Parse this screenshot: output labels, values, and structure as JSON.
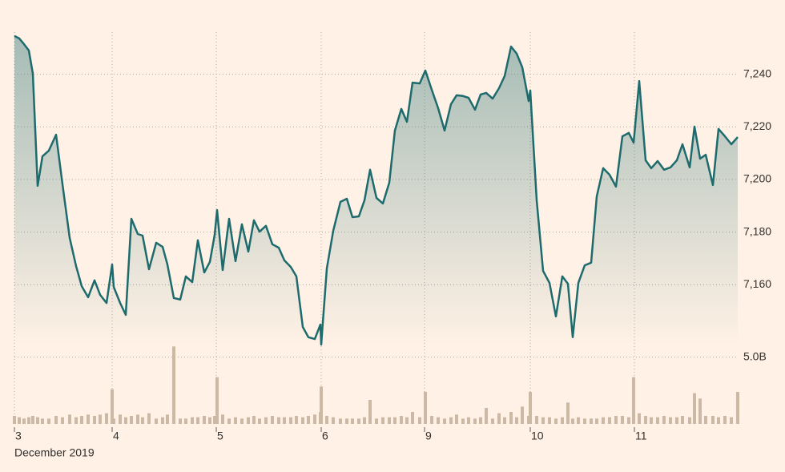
{
  "chart_data": {
    "type": "line",
    "x_label": "December 2019",
    "xlim": [
      0,
      903
    ],
    "xticks": [
      {
        "value": 0,
        "label": "3"
      },
      {
        "value": 122,
        "label": "4"
      },
      {
        "value": 252,
        "label": "5"
      },
      {
        "value": 383,
        "label": "6"
      },
      {
        "value": 512,
        "label": "9"
      },
      {
        "value": 644,
        "label": "10"
      },
      {
        "value": 774,
        "label": "11"
      }
    ],
    "x": [
      0,
      6,
      12,
      18,
      23,
      29,
      35,
      43,
      52,
      60,
      69,
      77,
      84,
      92,
      100,
      107,
      115,
      122,
      124,
      132,
      139,
      146,
      154,
      160,
      168,
      177,
      185,
      191,
      199,
      207,
      214,
      222,
      229,
      237,
      244,
      250,
      253,
      260,
      268,
      276,
      284,
      292,
      299,
      306,
      314,
      322,
      330,
      337,
      345,
      352,
      360,
      367,
      375,
      382,
      383,
      390,
      398,
      407,
      415,
      422,
      430,
      437,
      444,
      452,
      460,
      468,
      475,
      483,
      490,
      497,
      506,
      513,
      521,
      529,
      537,
      545,
      552,
      560,
      567,
      575,
      582,
      589,
      597,
      605,
      612,
      620,
      627,
      634,
      642,
      644,
      652,
      660,
      668,
      676,
      684,
      691,
      697,
      704,
      712,
      720,
      727,
      735,
      743,
      751,
      759,
      767,
      773,
      780,
      788,
      795,
      803,
      811,
      819,
      827,
      834,
      843,
      849,
      856,
      863,
      872,
      879,
      887,
      895,
      903
    ],
    "ylim": [
      7137,
      7256
    ],
    "yticks": [
      {
        "value": 7160,
        "label": "7,160"
      },
      {
        "value": 7180,
        "label": "7,180"
      },
      {
        "value": 7200,
        "label": "7,200"
      },
      {
        "value": 7220,
        "label": "7,220"
      },
      {
        "value": 7240,
        "label": "7,240"
      }
    ],
    "grid": true,
    "series": [
      {
        "color": "#1e6b6e",
        "values": [
          7254.5,
          7253.6,
          7251.4,
          7249.0,
          7240.2,
          7197.6,
          7208.8,
          7211.0,
          7217.0,
          7198.2,
          7177.8,
          7167.1,
          7159.5,
          7155.3,
          7161.7,
          7156.2,
          7153.1,
          7167.7,
          7159.2,
          7153.1,
          7148.6,
          7185.1,
          7179.3,
          7178.7,
          7165.9,
          7176.0,
          7174.4,
          7167.7,
          7155.0,
          7154.4,
          7163.2,
          7161.0,
          7176.9,
          7164.7,
          7168.7,
          7179.0,
          7188.4,
          7165.6,
          7185.1,
          7169.0,
          7183.0,
          7172.6,
          7184.5,
          7180.2,
          7182.4,
          7175.4,
          7174.1,
          7169.3,
          7166.8,
          7163.2,
          7144.0,
          7140.1,
          7139.4,
          7144.9,
          7137.3,
          7166.2,
          7180.5,
          7191.5,
          7192.7,
          7185.7,
          7186.0,
          7192.1,
          7203.7,
          7193.0,
          7190.9,
          7198.8,
          7218.6,
          7226.8,
          7221.9,
          7236.8,
          7236.5,
          7241.4,
          7234.1,
          7227.1,
          7218.6,
          7228.6,
          7232.0,
          7231.7,
          7231.0,
          7226.5,
          7232.3,
          7232.9,
          7230.7,
          7234.7,
          7239.3,
          7250.5,
          7247.8,
          7242.6,
          7229.8,
          7233.8,
          7192.1,
          7165.3,
          7160.7,
          7148.0,
          7163.2,
          7160.4,
          7140.1,
          7160.7,
          7167.4,
          7168.4,
          7193.6,
          7204.3,
          7201.8,
          7197.3,
          7216.4,
          7217.7,
          7214.0,
          7237.4,
          7207.3,
          7204.3,
          7207.0,
          7203.7,
          7204.6,
          7207.3,
          7213.4,
          7204.6,
          7220.1,
          7207.9,
          7209.4,
          7197.9,
          7219.2,
          7216.4,
          7213.4,
          7216.1
        ]
      }
    ],
    "volume": {
      "color": "#cbb9a6",
      "ylim": [
        0,
        6
      ],
      "yticks": [
        {
          "value": 5,
          "label": "5.0B"
        }
      ],
      "values": [
        0.6,
        0.5,
        0.4,
        0.5,
        0.6,
        0.5,
        0.4,
        0.4,
        0.6,
        0.5,
        0.7,
        0.5,
        0.6,
        0.7,
        0.6,
        0.7,
        0.8,
        2.6,
        0.4,
        0.7,
        0.5,
        0.6,
        0.7,
        0.5,
        0.8,
        0.4,
        0.5,
        0.7,
        5.8,
        0.4,
        0.4,
        0.5,
        0.5,
        0.6,
        0.5,
        0.6,
        3.5,
        0.7,
        0.4,
        0.5,
        0.4,
        0.5,
        0.6,
        0.4,
        0.5,
        0.6,
        0.5,
        0.5,
        0.5,
        0.6,
        0.5,
        0.6,
        0.7,
        0.9,
        2.8,
        0.6,
        0.5,
        0.4,
        0.4,
        0.4,
        0.4,
        0.5,
        1.8,
        0.4,
        0.5,
        0.5,
        0.5,
        0.6,
        0.5,
        0.9,
        0.5,
        2.4,
        0.6,
        0.5,
        0.4,
        0.5,
        0.7,
        0.4,
        0.5,
        0.4,
        0.5,
        1.2,
        0.4,
        0.8,
        0.5,
        0.9,
        0.5,
        1.3,
        0.6,
        2.4,
        0.6,
        0.5,
        0.5,
        0.4,
        0.5,
        1.6,
        0.4,
        0.5,
        0.4,
        0.4,
        0.4,
        0.5,
        0.5,
        0.6,
        0.6,
        0.5,
        3.5,
        0.8,
        0.6,
        0.5,
        0.5,
        0.6,
        0.5,
        0.5,
        0.6,
        0.5,
        2.3,
        1.9,
        0.6,
        0.6,
        0.5,
        0.6,
        0.5,
        2.4
      ]
    }
  }
}
